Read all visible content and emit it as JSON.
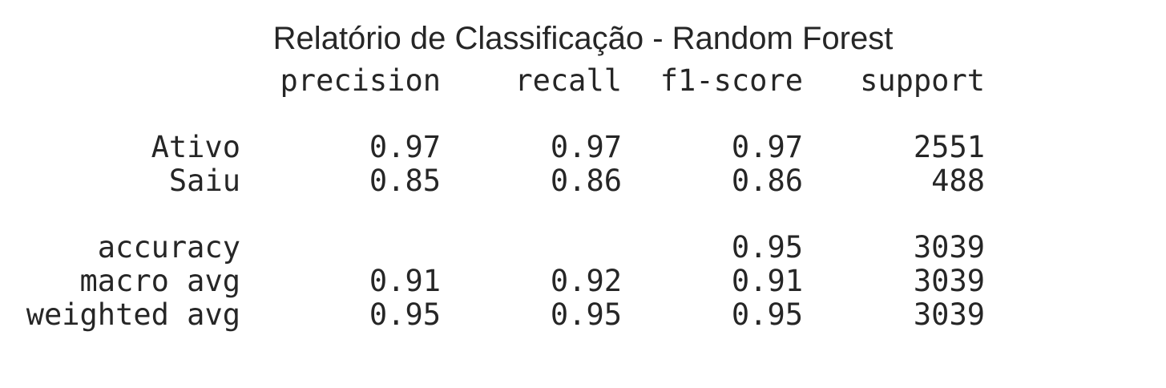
{
  "chart_data": {
    "type": "table",
    "title": "Relatório de Classificação - Random Forest",
    "columns": [
      "precision",
      "recall",
      "f1-score",
      "support"
    ],
    "rows": [
      {
        "label": "Ativo",
        "values": [
          "0.97",
          "0.97",
          "0.97",
          "2551"
        ]
      },
      {
        "label": "Saiu",
        "values": [
          "0.85",
          "0.86",
          "0.86",
          "488"
        ]
      },
      {
        "label": "accuracy",
        "values": [
          "",
          "",
          "0.95",
          "3039"
        ]
      },
      {
        "label": "macro avg",
        "values": [
          "0.91",
          "0.92",
          "0.91",
          "3039"
        ]
      },
      {
        "label": "weighted avg",
        "values": [
          "0.95",
          "0.95",
          "0.95",
          "3039"
        ]
      }
    ]
  }
}
